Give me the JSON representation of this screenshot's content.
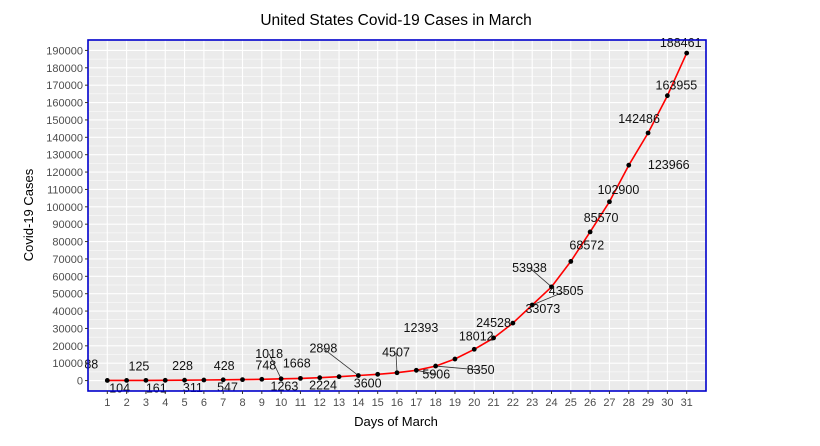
{
  "chart_data": {
    "type": "line",
    "title": "United States Covid-19 Cases in March",
    "xlabel": "Days of March",
    "ylabel": "Covid-19 Cases",
    "xlim": [
      0,
      32
    ],
    "ylim": [
      -6000,
      196000
    ],
    "x_ticks": [
      1,
      2,
      3,
      4,
      5,
      6,
      7,
      8,
      9,
      10,
      11,
      12,
      13,
      14,
      15,
      16,
      17,
      18,
      19,
      20,
      21,
      22,
      23,
      24,
      25,
      26,
      27,
      28,
      29,
      30,
      31
    ],
    "y_ticks": [
      0,
      10000,
      20000,
      30000,
      40000,
      50000,
      60000,
      70000,
      80000,
      90000,
      100000,
      110000,
      120000,
      130000,
      140000,
      150000,
      160000,
      170000,
      180000,
      190000
    ],
    "grid": true,
    "legend": "none",
    "series": [
      {
        "x": [
          1,
          2,
          3,
          4,
          5,
          6,
          7,
          8,
          9,
          10,
          11,
          12,
          13,
          14,
          15,
          16,
          17,
          18,
          19,
          20,
          21,
          22,
          23,
          24,
          25,
          26,
          27,
          28,
          29,
          30,
          31
        ],
        "values": [
          88,
          104,
          125,
          161,
          228,
          311,
          428,
          547,
          748,
          1018,
          1263,
          1668,
          2224,
          2898,
          3600,
          4507,
          5906,
          8350,
          12393,
          18012,
          24528,
          33073,
          43505,
          53938,
          68572,
          85570,
          102900,
          123966,
          142486,
          163955,
          188461
        ]
      }
    ],
    "point_labels": [
      "88",
      "104",
      "125",
      "161",
      "228",
      "311",
      "428",
      "547",
      "748",
      "1018",
      "1263",
      "1668",
      "2224",
      "2898",
      "3600",
      "4507",
      "5906",
      "8350",
      "12393",
      "18012",
      "24528",
      "33073",
      "43505",
      "53938",
      "68572",
      "85570",
      "102900",
      "123966",
      "142486",
      "163955",
      "188461"
    ],
    "colors": {
      "panel_background": "#ebebeb",
      "grid": "#ffffff",
      "line": "#ff0000",
      "points": "#000000",
      "border": "#0000cc"
    }
  }
}
